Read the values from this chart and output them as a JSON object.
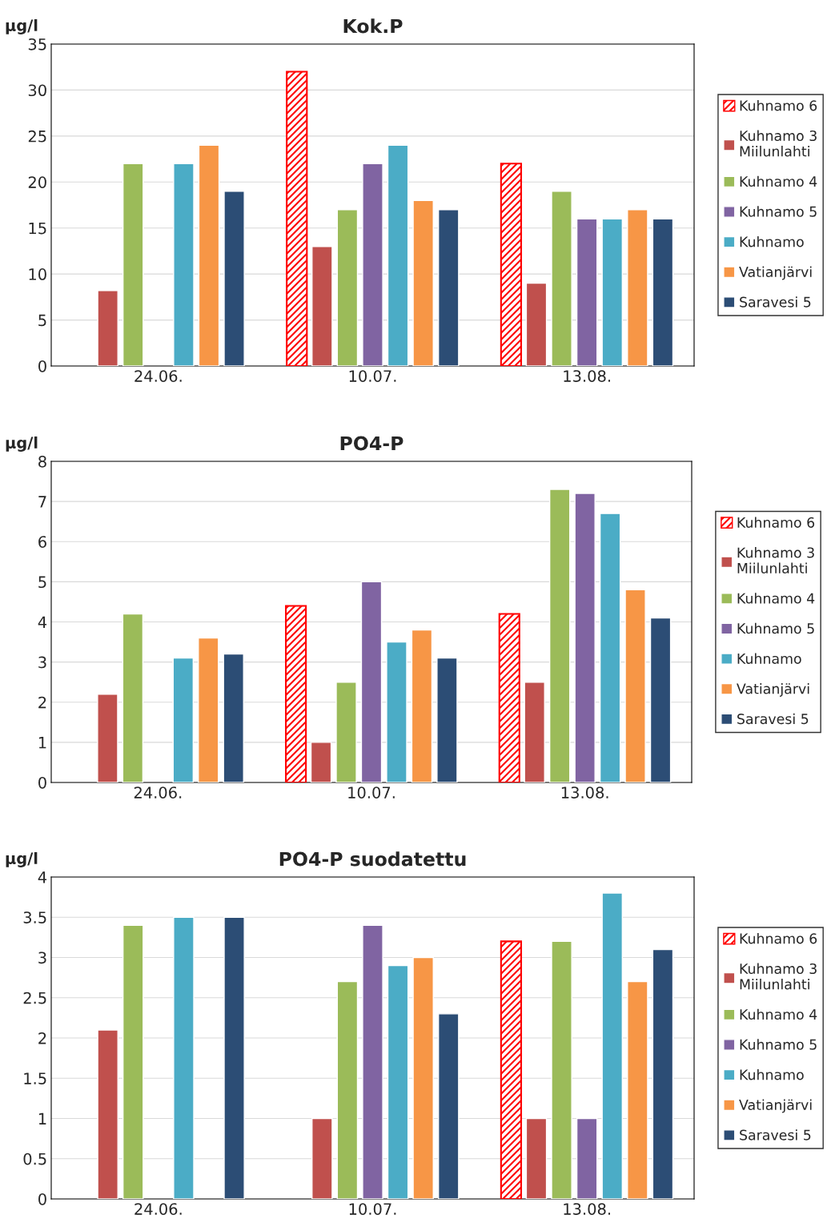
{
  "chart_data": [
    {
      "type": "bar",
      "title": "Kok.P",
      "ylabel": "µg/l",
      "categories": [
        "24.06.",
        "10.07.",
        "13.08."
      ],
      "ylim": [
        0,
        35
      ],
      "yticks": [
        0,
        5,
        10,
        15,
        20,
        25,
        30,
        35
      ],
      "grid": "y",
      "legend": "right",
      "series": [
        {
          "name": "Kuhnamo 6",
          "color": "#ff0000",
          "values": [
            null,
            32,
            22
          ]
        },
        {
          "name": "Kuhnamo 3\nMiilunlahti",
          "color": "#c0504d",
          "values": [
            8.2,
            13,
            9
          ]
        },
        {
          "name": "Kuhnamo 4",
          "color": "#9bbb59",
          "values": [
            22,
            17,
            19
          ]
        },
        {
          "name": "Kuhnamo 5",
          "color": "#8064a2",
          "values": [
            null,
            22,
            16
          ]
        },
        {
          "name": "Kuhnamo",
          "color": "#4bacc6",
          "values": [
            22,
            24,
            16
          ]
        },
        {
          "name": "Vatianjärvi",
          "color": "#f79646",
          "values": [
            24,
            18,
            17
          ]
        },
        {
          "name": "Saravesi 5",
          "color": "#2c4d75",
          "values": [
            19,
            17,
            16
          ]
        }
      ]
    },
    {
      "type": "bar",
      "title": "PO4-P",
      "ylabel": "µg/l",
      "categories": [
        "24.06.",
        "10.07.",
        "13.08."
      ],
      "ylim": [
        0,
        8
      ],
      "yticks": [
        0,
        1,
        2,
        3,
        4,
        5,
        6,
        7,
        8
      ],
      "grid": "y",
      "legend": "right",
      "series": [
        {
          "name": "Kuhnamo 6",
          "color": "#ff0000",
          "values": [
            null,
            4.4,
            4.2
          ]
        },
        {
          "name": "Kuhnamo 3\nMiilunlahti",
          "color": "#c0504d",
          "values": [
            2.2,
            1.0,
            2.5
          ]
        },
        {
          "name": "Kuhnamo 4",
          "color": "#9bbb59",
          "values": [
            4.2,
            2.5,
            7.3
          ]
        },
        {
          "name": "Kuhnamo 5",
          "color": "#8064a2",
          "values": [
            null,
            5.0,
            7.2
          ]
        },
        {
          "name": "Kuhnamo",
          "color": "#4bacc6",
          "values": [
            3.1,
            3.5,
            6.7
          ]
        },
        {
          "name": "Vatianjärvi",
          "color": "#f79646",
          "values": [
            3.6,
            3.8,
            4.8
          ]
        },
        {
          "name": "Saravesi 5",
          "color": "#2c4d75",
          "values": [
            3.2,
            3.1,
            4.1
          ]
        }
      ]
    },
    {
      "type": "bar",
      "title": "PO4-P suodatettu",
      "ylabel": "µg/l",
      "categories": [
        "24.06.",
        "10.07.",
        "13.08."
      ],
      "ylim": [
        0,
        4
      ],
      "yticks": [
        0,
        0.5,
        1,
        1.5,
        2,
        2.5,
        3,
        3.5,
        4
      ],
      "grid": "y",
      "legend": "right",
      "series": [
        {
          "name": "Kuhnamo 6",
          "color": "#ff0000",
          "values": [
            null,
            null,
            3.2
          ]
        },
        {
          "name": "Kuhnamo 3\nMiilunlahti",
          "color": "#c0504d",
          "values": [
            2.1,
            1.0,
            1.0
          ]
        },
        {
          "name": "Kuhnamo 4",
          "color": "#9bbb59",
          "values": [
            3.4,
            2.7,
            3.2
          ]
        },
        {
          "name": "Kuhnamo 5",
          "color": "#8064a2",
          "values": [
            null,
            3.4,
            1.0
          ]
        },
        {
          "name": "Kuhnamo",
          "color": "#4bacc6",
          "values": [
            3.5,
            2.9,
            3.8
          ]
        },
        {
          "name": "Vatianjärvi",
          "color": "#f79646",
          "values": [
            null,
            3.0,
            2.7
          ]
        },
        {
          "name": "Saravesi 5",
          "color": "#2c4d75",
          "values": [
            3.5,
            2.3,
            3.1
          ]
        }
      ]
    }
  ]
}
